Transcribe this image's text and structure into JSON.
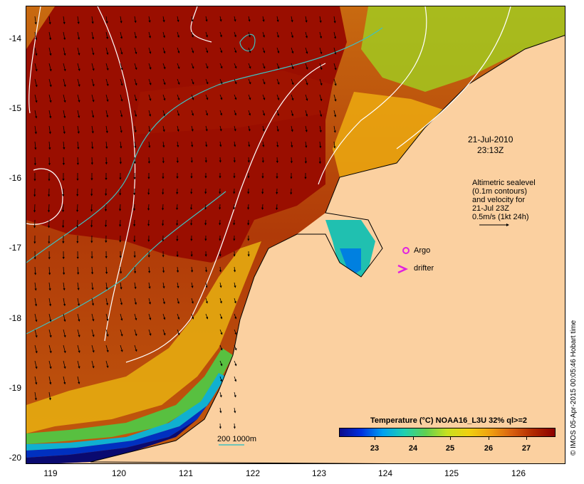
{
  "map": {
    "date_line1": "21-Jul-2010",
    "date_line2": "23:13Z",
    "legend_lines": [
      "Altimetric sealevel",
      "(0.1m contours)",
      "and velocity for",
      "21-Jul 23Z",
      "0.5m/s (1kt 24h)"
    ],
    "argo_label": "Argo",
    "drifter_label": "drifter",
    "isobath_label": "200  1000m",
    "credit": "© IMOS 05-Apr-2015 00:05:46 Hobart time",
    "lat_ticks": [
      "-14",
      "-15",
      "-16",
      "-17",
      "-18",
      "-19",
      "-20"
    ],
    "lon_ticks": [
      "119",
      "120",
      "121",
      "122",
      "123",
      "124",
      "125",
      "126"
    ]
  },
  "colorbar": {
    "title": "Temperature (°C) NOAA16_L3U 32% ql>=2",
    "labels": [
      "23",
      "24",
      "25",
      "26",
      "27"
    ],
    "stops": [
      "#0a0a8c",
      "#0030e0",
      "#00a0f0",
      "#20d0b0",
      "#60d050",
      "#c8e020",
      "#f0d010",
      "#f0a010",
      "#d86010",
      "#b02800",
      "#8c0000"
    ]
  },
  "colors": {
    "land": "#fbd0a0",
    "warm": "#9a0e00",
    "mid": "#c05010",
    "cool": "#0030c0",
    "contour": "#ffffff",
    "isobath": "#40c0c0",
    "argo": "#e020e0"
  }
}
